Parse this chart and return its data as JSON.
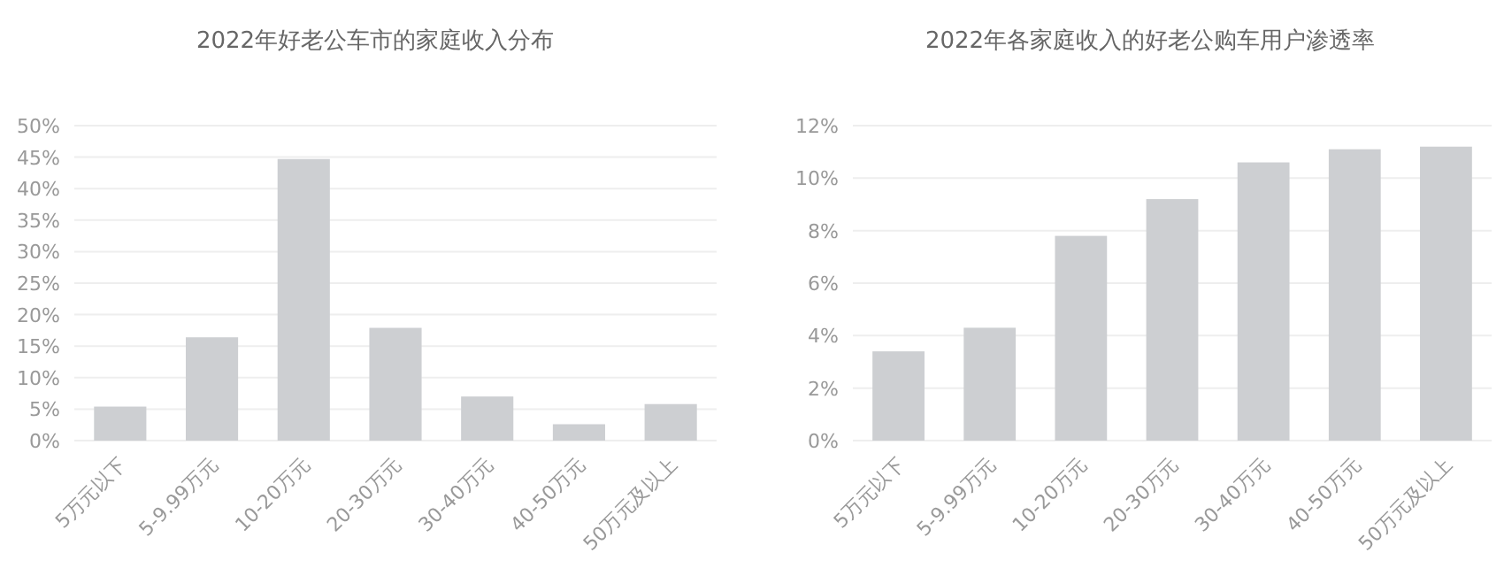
{
  "chart_data": [
    {
      "type": "bar",
      "title": "2022年好老公车市的家庭收入分布",
      "categories": [
        "5万元以下",
        "5-9.99万元",
        "10-20万元",
        "20-30万元",
        "30-40万元",
        "40-50万元",
        "50万元及以上"
      ],
      "values": [
        5.4,
        16.4,
        44.7,
        17.9,
        7.0,
        2.6,
        5.8
      ],
      "color": "#cdcfd2",
      "ylim": [
        0,
        50
      ],
      "yticks": [
        {
          "value": 0,
          "label": "0%"
        },
        {
          "value": 5,
          "label": "5%"
        },
        {
          "value": 10,
          "label": "10%"
        },
        {
          "value": 15,
          "label": "15%"
        },
        {
          "value": 20,
          "label": "20%"
        },
        {
          "value": 25,
          "label": "25%"
        },
        {
          "value": 30,
          "label": "30%"
        },
        {
          "value": 35,
          "label": "35%"
        },
        {
          "value": 40,
          "label": "40%"
        },
        {
          "value": 45,
          "label": "45%"
        },
        {
          "value": 50,
          "label": "50%"
        }
      ],
      "grid": "y"
    },
    {
      "type": "bar",
      "title": "2022年各家庭收入的好老公购车用户渗透率",
      "categories": [
        "5万元以下",
        "5-9.99万元",
        "10-20万元",
        "20-30万元",
        "30-40万元",
        "40-50万元",
        "50万元及以上"
      ],
      "values": [
        3.4,
        4.3,
        7.8,
        9.2,
        10.6,
        11.1,
        11.2
      ],
      "color": "#cdcfd2",
      "ylim": [
        0,
        12
      ],
      "yticks": [
        {
          "value": 0,
          "label": "0%"
        },
        {
          "value": 2,
          "label": "2%"
        },
        {
          "value": 4,
          "label": "4%"
        },
        {
          "value": 6,
          "label": "6%"
        },
        {
          "value": 8,
          "label": "8%"
        },
        {
          "value": 10,
          "label": "10%"
        },
        {
          "value": 12,
          "label": "12%"
        }
      ],
      "grid": "y"
    }
  ]
}
